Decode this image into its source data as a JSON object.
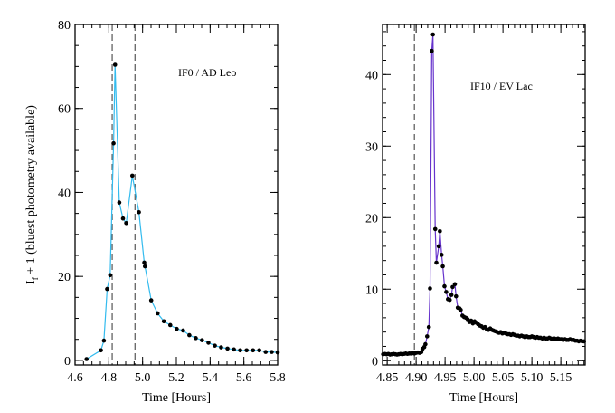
{
  "chart_data": [
    {
      "type": "line",
      "annotation": "IF0 / AD Leo",
      "xlabel": "Time [Hours]",
      "ylabel_main": "I",
      "ylabel_sub": "f",
      "ylabel_rest": " + 1 (bluest photometry available)",
      "xlim": [
        4.6,
        5.8
      ],
      "ylim": [
        -1.1,
        80
      ],
      "xticks": [
        4.6,
        4.8,
        5.0,
        5.2,
        5.4,
        5.6,
        5.8
      ],
      "xtick_labels": [
        "4.6",
        "4.8",
        "5.0",
        "5.2",
        "5.4",
        "5.6",
        "5.8"
      ],
      "yticks": [
        0,
        20,
        40,
        60,
        80
      ],
      "ytick_labels": [
        "0",
        "20",
        "40",
        "60",
        "80"
      ],
      "line_color": "#33bbee",
      "marker_color": "#000000",
      "vlines": [
        4.82,
        4.955
      ],
      "x": [
        4.668,
        4.753,
        4.771,
        4.79,
        4.808,
        4.828,
        4.837,
        4.862,
        4.884,
        4.903,
        4.939,
        4.978,
        5.01,
        5.014,
        5.051,
        5.089,
        5.126,
        5.164,
        5.202,
        5.24,
        5.277,
        5.315,
        5.352,
        5.39,
        5.428,
        5.465,
        5.503,
        5.541,
        5.578,
        5.616,
        5.654,
        5.691,
        5.729,
        5.765,
        5.8
      ],
      "y": [
        0.3,
        2.4,
        4.7,
        17.0,
        20.3,
        51.7,
        70.4,
        37.6,
        33.8,
        32.7,
        44.0,
        35.3,
        23.3,
        22.4,
        14.3,
        11.2,
        9.3,
        8.4,
        7.5,
        7.1,
        6.0,
        5.3,
        4.8,
        4.2,
        3.5,
        3.1,
        2.8,
        2.6,
        2.4,
        2.4,
        2.4,
        2.4,
        2.0,
        2.0,
        1.9
      ]
    },
    {
      "type": "line",
      "annotation": "IF10 / EV Lac",
      "xlabel": "Time [Hours]",
      "xlim": [
        4.842,
        5.192
      ],
      "ylim": [
        -0.6,
        47
      ],
      "xticks": [
        4.85,
        4.9,
        4.95,
        5.0,
        5.05,
        5.1,
        5.15
      ],
      "xtick_labels": [
        "4.85",
        "4.90",
        "4.95",
        "5.00",
        "5.05",
        "5.10",
        "5.15"
      ],
      "yticks": [
        0,
        10,
        20,
        30,
        40
      ],
      "ytick_labels": [
        "0",
        "10",
        "20",
        "30",
        "40"
      ],
      "line_color": "#6633cc",
      "marker_color": "#000000",
      "vlines": [
        4.897
      ],
      "x": [
        4.843,
        4.846,
        4.849,
        4.852,
        4.855,
        4.858,
        4.861,
        4.864,
        4.867,
        4.87,
        4.873,
        4.876,
        4.879,
        4.882,
        4.885,
        4.888,
        4.891,
        4.894,
        4.897,
        4.9,
        4.903,
        4.906,
        4.909,
        4.911,
        4.914,
        4.916,
        4.919,
        4.922,
        4.924,
        4.927,
        4.929,
        4.933,
        4.935,
        4.939,
        4.941,
        4.944,
        4.946,
        4.949,
        4.952,
        4.955,
        4.958,
        4.961,
        4.963,
        4.967,
        4.969,
        4.972,
        4.975,
        4.977,
        4.98,
        4.983,
        4.986,
        4.989,
        4.992,
        4.995,
        4.998,
        5.001,
        5.004,
        5.007,
        5.01,
        5.013,
        5.016,
        5.019,
        5.022,
        5.025,
        5.028,
        5.031,
        5.034,
        5.037,
        5.04,
        5.043,
        5.046,
        5.049,
        5.052,
        5.055,
        5.058,
        5.061,
        5.064,
        5.067,
        5.07,
        5.073,
        5.076,
        5.079,
        5.082,
        5.085,
        5.088,
        5.091,
        5.094,
        5.097,
        5.1,
        5.103,
        5.106,
        5.109,
        5.112,
        5.115,
        5.118,
        5.121,
        5.124,
        5.127,
        5.13,
        5.133,
        5.136,
        5.139,
        5.142,
        5.145,
        5.148,
        5.151,
        5.154,
        5.157,
        5.16,
        5.163,
        5.166,
        5.169,
        5.172,
        5.175,
        5.178,
        5.181,
        5.184,
        5.187,
        5.19
      ],
      "y": [
        0.9,
        0.95,
        0.9,
        0.95,
        0.85,
        0.9,
        0.95,
        0.9,
        0.85,
        0.9,
        0.95,
        0.9,
        0.95,
        1.0,
        0.95,
        1.0,
        1.0,
        1.05,
        1.0,
        1.1,
        1.15,
        1.1,
        1.2,
        1.65,
        1.9,
        2.3,
        3.4,
        4.7,
        10.1,
        43.3,
        45.6,
        18.4,
        13.7,
        16.0,
        18.1,
        14.8,
        13.2,
        10.4,
        9.6,
        8.6,
        8.5,
        9.2,
        10.3,
        10.7,
        9.0,
        7.4,
        7.3,
        7.1,
        6.3,
        6.1,
        6.0,
        5.8,
        5.4,
        5.6,
        5.2,
        5.5,
        5.3,
        5.1,
        4.9,
        4.8,
        4.6,
        4.7,
        4.4,
        4.3,
        4.5,
        4.3,
        4.2,
        4.1,
        4.0,
        3.9,
        4.0,
        3.8,
        3.9,
        3.8,
        3.7,
        3.7,
        3.6,
        3.7,
        3.6,
        3.5,
        3.5,
        3.4,
        3.5,
        3.4,
        3.3,
        3.4,
        3.3,
        3.3,
        3.4,
        3.3,
        3.2,
        3.3,
        3.2,
        3.2,
        3.1,
        3.2,
        3.1,
        3.1,
        3.2,
        3.1,
        3.0,
        3.1,
        3.0,
        3.1,
        3.0,
        3.0,
        2.9,
        3.0,
        2.9,
        2.9,
        3.0,
        2.9,
        2.9,
        2.8,
        2.8,
        2.7,
        2.8,
        2.7,
        2.7
      ]
    }
  ]
}
